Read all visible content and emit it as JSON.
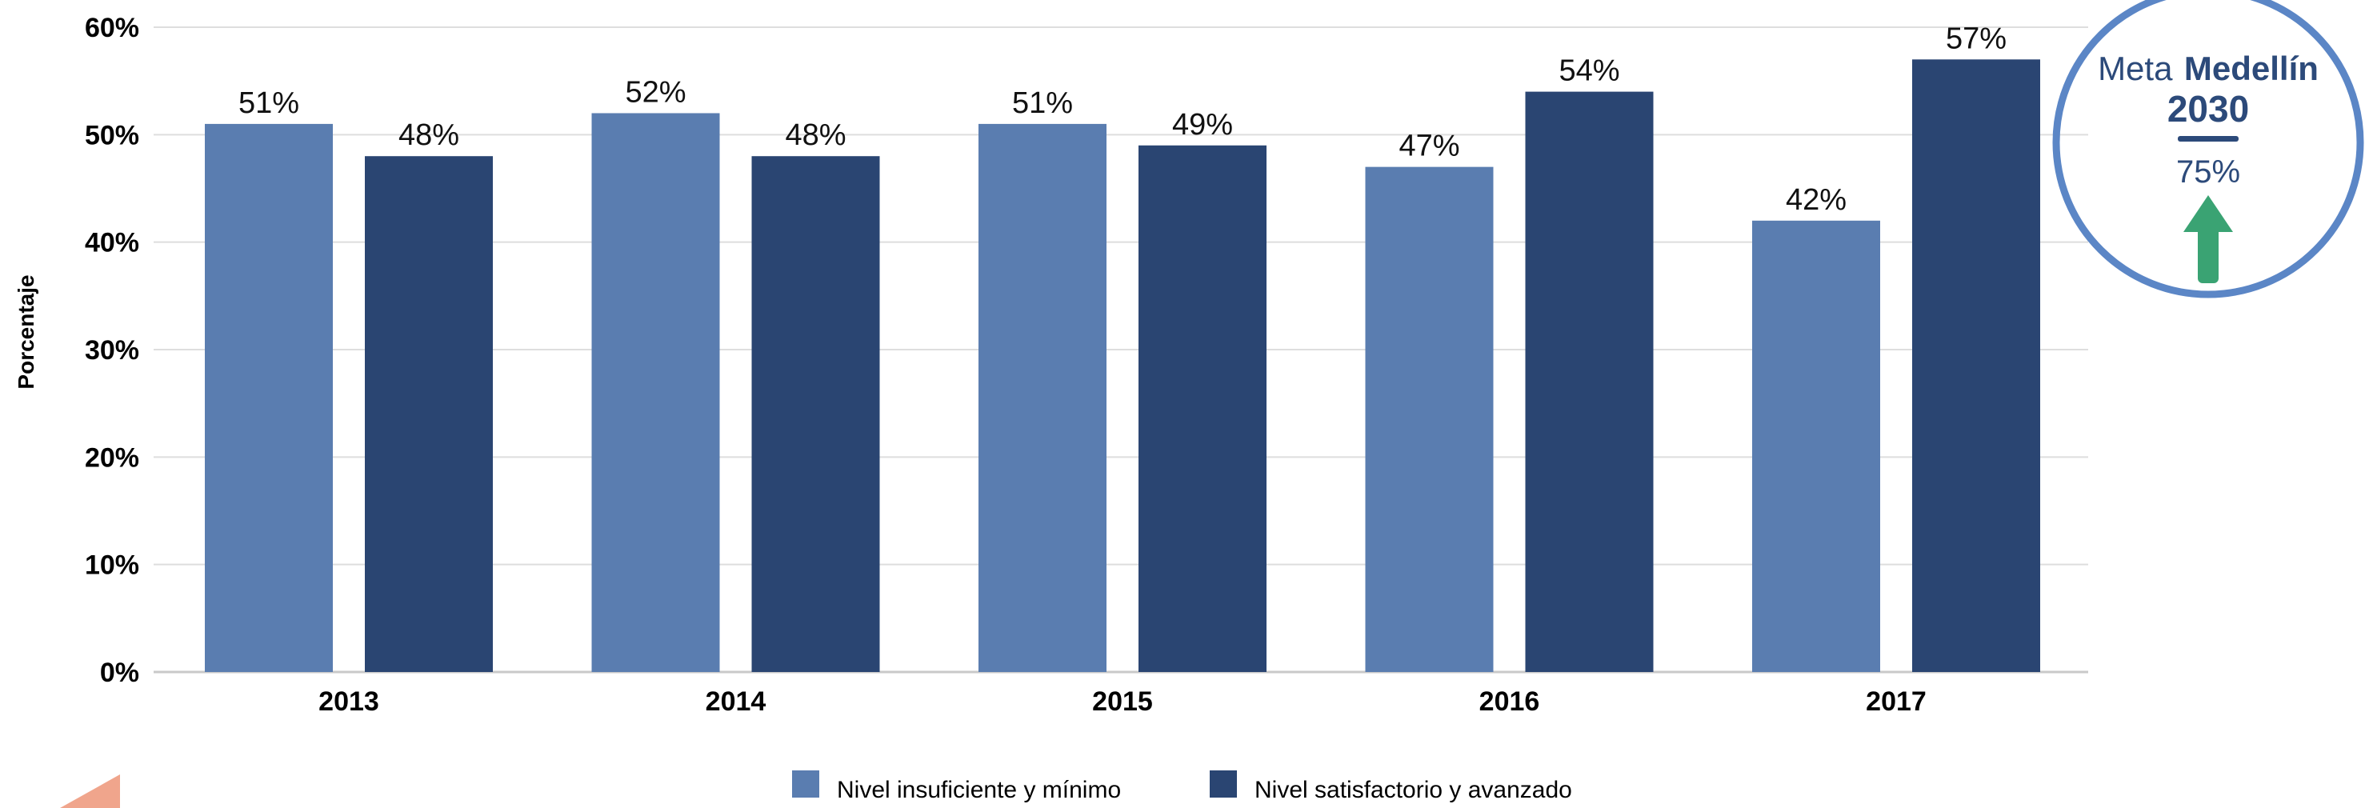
{
  "chart_data": {
    "type": "bar",
    "categories": [
      "2013",
      "2014",
      "2015",
      "2016",
      "2017"
    ],
    "series": [
      {
        "name": "Nivel insuficiente y mínimo",
        "values": [
          51,
          52,
          51,
          47,
          42
        ],
        "labels": [
          "51%",
          "52%",
          "51%",
          "47%",
          "42%"
        ]
      },
      {
        "name": "Nivel satisfactorio y avanzado",
        "values": [
          48,
          48,
          49,
          54,
          57
        ],
        "labels": [
          "48%",
          "48%",
          "49%",
          "54%",
          "57%"
        ]
      }
    ],
    "ylabel": "Porcentaje",
    "ylim": [
      0,
      60
    ],
    "yticks": [
      "0%",
      "10%",
      "20%",
      "30%",
      "40%",
      "50%",
      "60%"
    ],
    "grid": true,
    "legend": "bottom-center",
    "colors": [
      "#5a7db0",
      "#2a4572"
    ],
    "annotation": {
      "line1_light": "Meta",
      "line1_bold": "Medellín",
      "line2": "2030",
      "value": "75%",
      "ring_color": "#5b86c6",
      "arrow_color": "#3aa373",
      "text_color": "#2c4a7a"
    }
  }
}
